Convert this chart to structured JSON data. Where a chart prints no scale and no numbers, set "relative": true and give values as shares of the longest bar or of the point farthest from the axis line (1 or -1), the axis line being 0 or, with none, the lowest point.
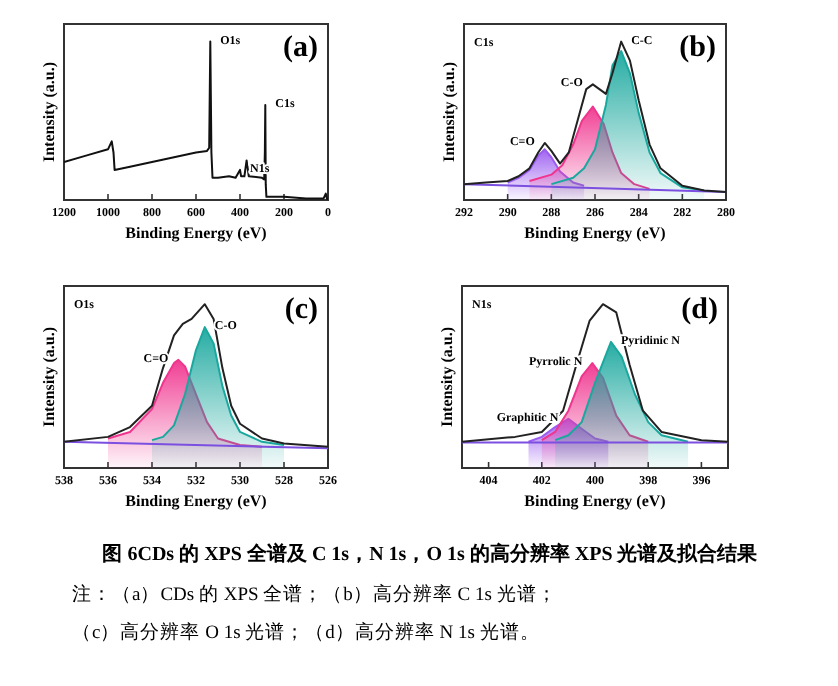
{
  "chart_data": [
    {
      "type": "line",
      "title": "(a)",
      "xlabel": "Binding Energy (eV)",
      "ylabel": "Intensity (a.u.)",
      "relative": true,
      "tick_labels": "x",
      "xlim": [
        1200,
        0
      ],
      "xticks": [
        1200,
        1000,
        800,
        600,
        400,
        200,
        0
      ],
      "annotations": [
        {
          "text": "O1s",
          "x": 535,
          "y": 1.0
        },
        {
          "text": "N1s",
          "x": 400,
          "y": 0.19
        },
        {
          "text": "C1s",
          "x": 285,
          "y": 0.6
        }
      ],
      "series": [
        {
          "type": "line",
          "color": "#111111",
          "x": [
            1200,
            1100,
            1000,
            983,
            975,
            970,
            900,
            800,
            700,
            600,
            550,
            540,
            535,
            530,
            525,
            500,
            450,
            420,
            400,
            395,
            380,
            370,
            360,
            300,
            290,
            287,
            285,
            283,
            280,
            200,
            100,
            20,
            10,
            5,
            0
          ],
          "values": [
            0.24,
            0.28,
            0.32,
            0.37,
            0.3,
            0.19,
            0.21,
            0.24,
            0.27,
            0.3,
            0.31,
            0.33,
            1.0,
            0.3,
            0.14,
            0.14,
            0.15,
            0.14,
            0.19,
            0.15,
            0.15,
            0.25,
            0.15,
            0.14,
            0.13,
            0.3,
            0.6,
            0.1,
            0.02,
            0.02,
            0.01,
            0.01,
            0.04,
            0.01,
            0.0
          ]
        }
      ]
    },
    {
      "type": "line",
      "title": "(b)",
      "xlabel": "Binding Energy (eV)",
      "ylabel": "Intensity (a.u.)",
      "relative": true,
      "tick_labels": "x",
      "xlim": [
        292,
        280
      ],
      "xticks": [
        292,
        290,
        288,
        286,
        284,
        282,
        280
      ],
      "annotations": [
        "C1s",
        {
          "text": "C=O",
          "x": 288.3,
          "y": 0.36
        },
        {
          "text": "C-O",
          "x": 286.1,
          "y": 0.73
        },
        {
          "text": "C-C",
          "x": 284.8,
          "y": 1.0
        }
      ],
      "series": [
        {
          "type": "line",
          "color": "#7b4fe0",
          "x": [
            292,
            280
          ],
          "values": [
            0.1,
            0.05
          ]
        },
        {
          "type": "area",
          "color": "#9b5cf0",
          "x": [
            290,
            289.5,
            289,
            288.6,
            288.3,
            288,
            287.6,
            287,
            286.5
          ],
          "values": [
            0.11,
            0.14,
            0.19,
            0.28,
            0.32,
            0.27,
            0.18,
            0.11,
            0.09
          ]
        },
        {
          "type": "area",
          "color": "#f0358f",
          "x": [
            289,
            288,
            287.5,
            287,
            286.6,
            286.1,
            285.6,
            285.2,
            284.8,
            284.2,
            283.5
          ],
          "values": [
            0.12,
            0.16,
            0.22,
            0.35,
            0.5,
            0.59,
            0.48,
            0.3,
            0.17,
            0.1,
            0.07
          ]
        },
        {
          "type": "area",
          "color": "#1aa89e",
          "x": [
            288,
            287,
            286.5,
            286,
            285.5,
            285.2,
            284.8,
            284.4,
            284,
            283.5,
            283,
            282,
            281
          ],
          "values": [
            0.1,
            0.14,
            0.2,
            0.32,
            0.6,
            0.85,
            0.94,
            0.8,
            0.55,
            0.3,
            0.17,
            0.08,
            0.06
          ]
        },
        {
          "type": "line",
          "color": "#222222",
          "x": [
            292,
            291,
            290,
            289.5,
            289,
            288.6,
            288.3,
            288,
            287.6,
            287.2,
            286.8,
            286.4,
            286.1,
            285.8,
            285.5,
            285.2,
            284.8,
            284.4,
            284,
            283.5,
            283,
            282,
            281,
            280
          ],
          "values": [
            0.1,
            0.11,
            0.12,
            0.15,
            0.2,
            0.3,
            0.36,
            0.31,
            0.23,
            0.3,
            0.5,
            0.7,
            0.73,
            0.7,
            0.67,
            0.8,
            1.0,
            0.88,
            0.63,
            0.35,
            0.2,
            0.09,
            0.06,
            0.05
          ]
        }
      ]
    },
    {
      "type": "line",
      "title": "(c)",
      "xlabel": "Binding Energy (eV)",
      "ylabel": "Intensity (a.u.)",
      "relative": true,
      "tick_labels": "x",
      "xlim": [
        538,
        526
      ],
      "xticks": [
        538,
        536,
        534,
        532,
        530,
        528,
        526
      ],
      "annotations": [
        "O1s",
        {
          "text": "C=O",
          "x": 532.8,
          "y": 0.66
        },
        {
          "text": "C-O",
          "x": 531.6,
          "y": 0.86
        }
      ],
      "series": [
        {
          "type": "line",
          "color": "#7b4fe0",
          "x": [
            538,
            526
          ],
          "values": [
            0.16,
            0.12
          ]
        },
        {
          "type": "area",
          "color": "#f0358f",
          "x": [
            536,
            535,
            534,
            533.5,
            533,
            532.8,
            532.5,
            532,
            531.5,
            531,
            530,
            529
          ],
          "values": [
            0.18,
            0.22,
            0.36,
            0.52,
            0.64,
            0.66,
            0.62,
            0.45,
            0.28,
            0.18,
            0.14,
            0.13
          ]
        },
        {
          "type": "area",
          "color": "#1aa89e",
          "x": [
            534,
            533.5,
            533,
            532.5,
            532,
            531.6,
            531.2,
            530.8,
            530.4,
            530,
            529,
            528
          ],
          "values": [
            0.17,
            0.19,
            0.26,
            0.45,
            0.72,
            0.86,
            0.76,
            0.5,
            0.32,
            0.22,
            0.16,
            0.14
          ]
        },
        {
          "type": "line",
          "color": "#222222",
          "x": [
            538,
            536,
            535,
            534,
            533.5,
            533,
            532.6,
            532.2,
            531.6,
            531.2,
            530.8,
            530.4,
            530,
            529,
            528,
            526
          ],
          "values": [
            0.16,
            0.19,
            0.25,
            0.38,
            0.61,
            0.81,
            0.88,
            0.91,
            1.0,
            0.91,
            0.61,
            0.38,
            0.27,
            0.18,
            0.15,
            0.13
          ]
        }
      ]
    },
    {
      "type": "line",
      "title": "(d)",
      "xlabel": "Binding Energy (eV)",
      "ylabel": "Intensity (a.u.)",
      "relative": true,
      "tick_labels": "x",
      "xlim": [
        405,
        395
      ],
      "xticks": [
        404,
        402,
        400,
        398,
        396
      ],
      "annotations": [
        "N1s",
        {
          "text": "Graphitic N",
          "x": 401,
          "y": 0.3
        },
        {
          "text": "Pyrrolic N",
          "x": 400.1,
          "y": 0.64
        },
        {
          "text": "Pyridinic N",
          "x": 399.4,
          "y": 0.77
        }
      ],
      "series": [
        {
          "type": "line",
          "color": "#7b4fe0",
          "x": [
            405,
            395
          ],
          "values": [
            0.155,
            0.155
          ]
        },
        {
          "type": "area",
          "color": "#9b5cf0",
          "x": [
            402.5,
            402,
            401.5,
            401,
            400.5,
            400,
            399.5
          ],
          "values": [
            0.16,
            0.19,
            0.25,
            0.3,
            0.24,
            0.18,
            0.16
          ]
        },
        {
          "type": "area",
          "color": "#f0358f",
          "x": [
            402,
            401.5,
            401,
            400.5,
            400.1,
            399.7,
            399.2,
            398.7,
            398
          ],
          "values": [
            0.17,
            0.22,
            0.35,
            0.56,
            0.64,
            0.55,
            0.32,
            0.2,
            0.16
          ]
        },
        {
          "type": "area",
          "color": "#1aa89e",
          "x": [
            401.5,
            401,
            400.5,
            400,
            399.4,
            399,
            398.5,
            398,
            397.5,
            396.5
          ],
          "values": [
            0.17,
            0.2,
            0.28,
            0.52,
            0.77,
            0.68,
            0.45,
            0.28,
            0.2,
            0.16
          ]
        },
        {
          "type": "line",
          "color": "#222222",
          "x": [
            405,
            403,
            402,
            401.2,
            400.7,
            400.2,
            399.7,
            399.2,
            398.7,
            398.2,
            397.5,
            396,
            395
          ],
          "values": [
            0.16,
            0.19,
            0.22,
            0.35,
            0.63,
            0.9,
            1.0,
            0.95,
            0.63,
            0.35,
            0.22,
            0.17,
            0.16
          ]
        }
      ]
    },
    {
      "type": "other",
      "title": "图 6CDs 的 XPS 全谱及 C 1s，N 1s，O 1s 的高分辨率 XPS 光谱及拟合结果",
      "annotations": [
        "注：（a）CDs 的 XPS 全谱；（b）高分辨率 C 1s 光谱；",
        "（c）高分辨率 O 1s 光谱；（d）高分辨率 N 1s 光谱。"
      ]
    }
  ]
}
